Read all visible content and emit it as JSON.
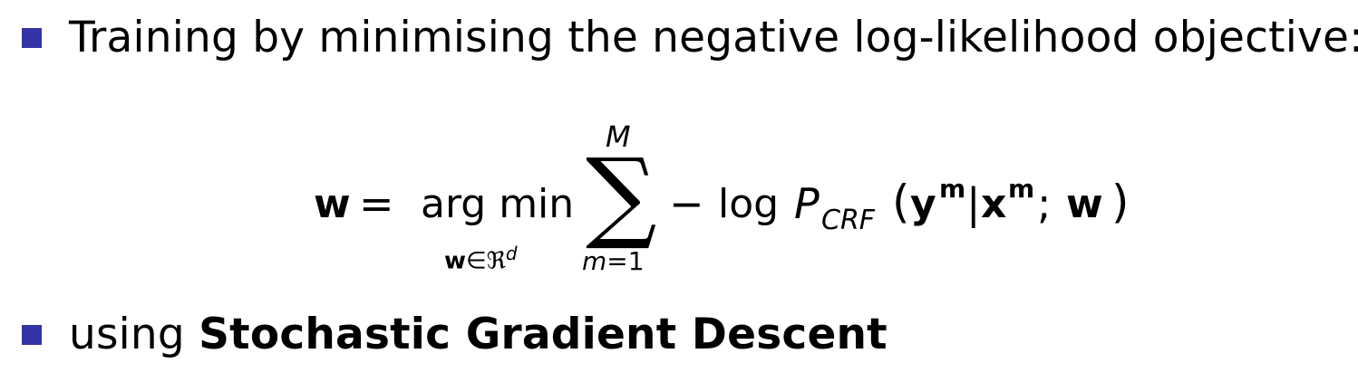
{
  "bullets": [
    {
      "text": "Training by minimising the negative log-likelihood objective:"
    },
    {
      "prefix": "using ",
      "bold": "Stochastic Gradient Descent"
    }
  ],
  "equation": {
    "lhs": "w",
    "equals": "=",
    "operator": "arg min",
    "operator_sub_var": "w",
    "operator_sub_in": "∈",
    "operator_sub_set": "ℜ",
    "operator_sub_exp": "d",
    "sum_symbol": "∑",
    "sum_upper": "M",
    "sum_lower_var": "m",
    "sum_lower_eq": "=1",
    "minus": "−",
    "log": "log",
    "P": "P",
    "P_sub": "CRF",
    "open_paren": "(",
    "y": "y",
    "y_sup": "m",
    "given": "|",
    "x": "x",
    "x_sup": "m",
    "semicolon": ";",
    "w": "w",
    "close_paren": ")"
  },
  "colors": {
    "bullet": "#3434a6",
    "text": "#000000",
    "background": "#ffffff"
  }
}
